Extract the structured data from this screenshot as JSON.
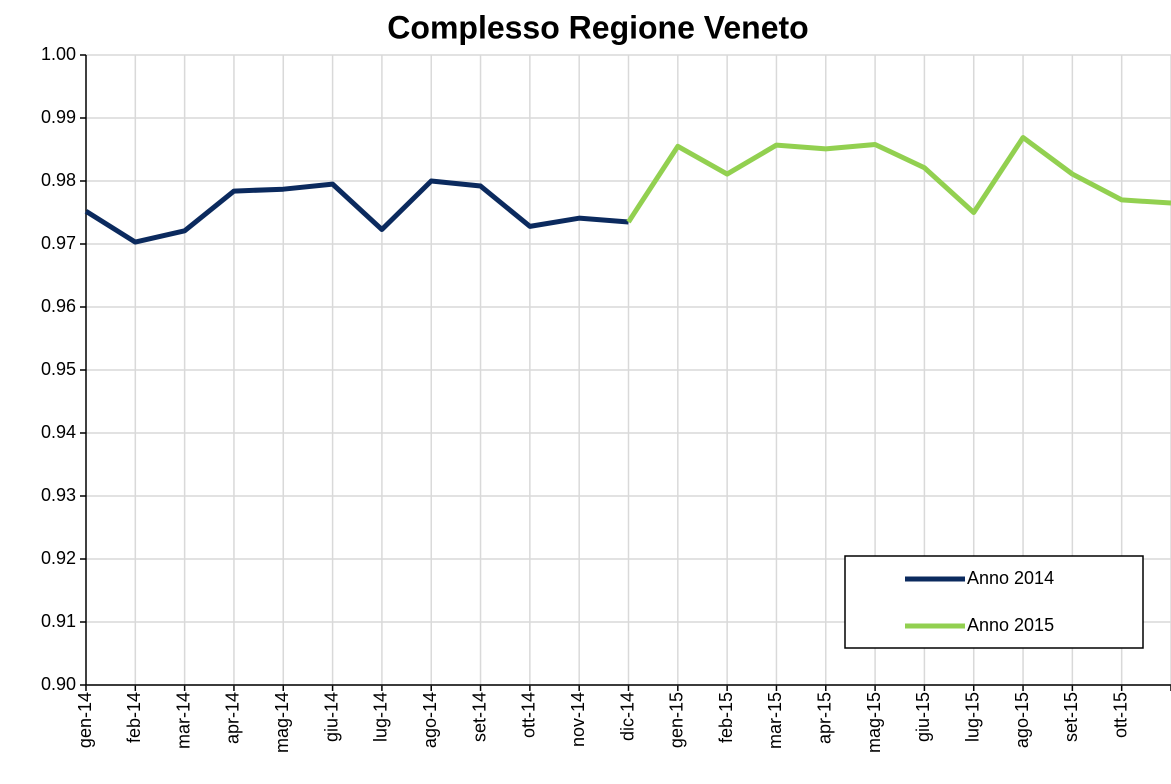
{
  "chart_data": {
    "type": "line",
    "title": "Complesso Regione Veneto",
    "categories": [
      "gen-14",
      "feb-14",
      "mar-14",
      "apr-14",
      "mag-14",
      "giu-14",
      "lug-14",
      "ago-14",
      "set-14",
      "ott-14",
      "nov-14",
      "dic-14",
      "gen-15",
      "feb-15",
      "mar-15",
      "apr-15",
      "mag-15",
      "giu-15",
      "lug-15",
      "ago-15",
      "set-15",
      "ott-15",
      null
    ],
    "series": [
      {
        "name": "Anno 2014",
        "color": "#0b2a5e",
        "values": [
          0.9752,
          0.9703,
          0.9721,
          0.9784,
          0.9787,
          0.9795,
          0.9723,
          0.98,
          0.9792,
          0.9728,
          0.9741,
          0.9735,
          null,
          null,
          null,
          null,
          null,
          null,
          null,
          null,
          null,
          null,
          null
        ]
      },
      {
        "name": "Anno 2015",
        "color": "#92d050",
        "values": [
          null,
          null,
          null,
          null,
          null,
          null,
          null,
          null,
          null,
          null,
          null,
          0.9735,
          0.9855,
          0.9811,
          0.9857,
          0.9851,
          0.9858,
          0.9821,
          0.975,
          0.9869,
          0.9811,
          0.977,
          0.9765
        ]
      }
    ],
    "ylim": [
      0.9,
      1.0
    ],
    "yticks": [
      {
        "value": 0.9,
        "label": "0.90"
      },
      0.91,
      0.92,
      0.93,
      0.94,
      0.95,
      0.96,
      0.97,
      0.98,
      0.99,
      {
        "value": 1.0,
        "label": "1.00"
      }
    ],
    "grid": true,
    "legend": "lower right"
  }
}
